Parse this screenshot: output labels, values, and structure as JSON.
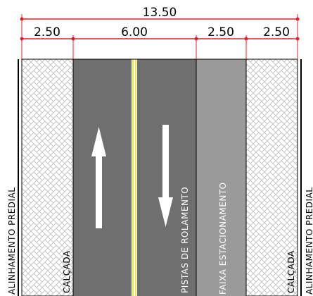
{
  "dimensions": {
    "total": "13.50",
    "segments": [
      "2.50",
      "6.00",
      "2.50",
      "2.50"
    ]
  },
  "labels": {
    "sidewalk_left": "CALÇADA",
    "sidewalk_right": "CALÇADA",
    "lanes": "PISTAS DE ROLAMENTO",
    "parking": "FAIXA ESTACIONAMENTO",
    "property_line_left": "ALINHAMENTO PREDIAL",
    "property_line_right": "ALINHAMENTO PREDIAL"
  },
  "colors": {
    "dimension_line": "#e0202a",
    "road": "#6f6f6f",
    "parking": "#9a9a9a",
    "centerline": "#f0e63c",
    "sidewalk_pattern": "#bfbfbf"
  },
  "arrows": [
    "arrow-up-icon",
    "arrow-down-icon"
  ]
}
